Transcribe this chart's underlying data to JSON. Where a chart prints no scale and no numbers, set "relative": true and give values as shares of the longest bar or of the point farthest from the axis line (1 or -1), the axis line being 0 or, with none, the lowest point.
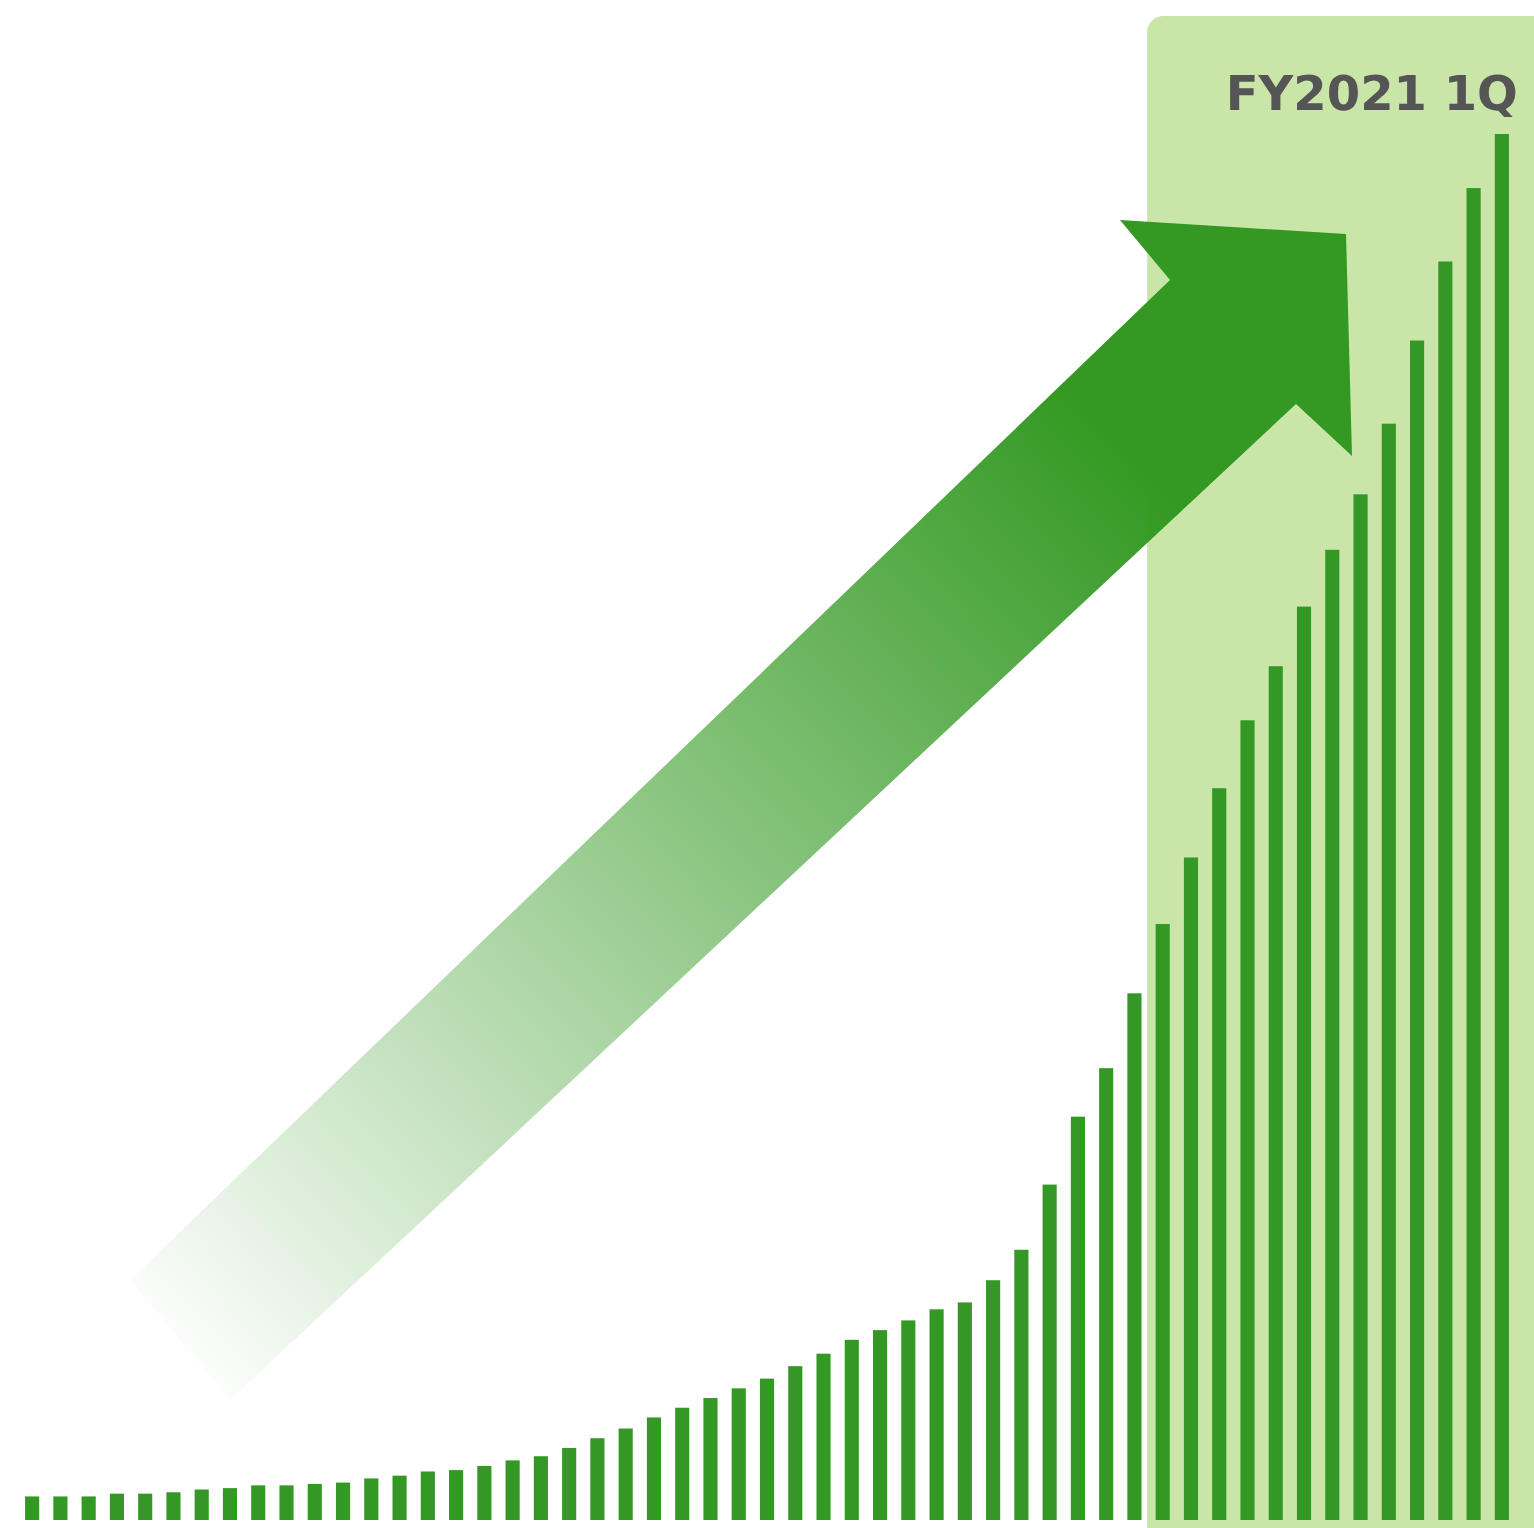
{
  "chart_data": {
    "type": "bar",
    "relative": true,
    "color": "#339924",
    "categories": [
      null,
      null,
      null,
      null,
      null,
      null,
      null,
      null,
      null,
      null,
      null,
      null,
      null,
      null,
      null,
      null,
      null,
      null,
      null,
      null,
      null,
      null,
      null,
      null,
      null,
      null,
      null,
      null,
      null,
      null,
      null,
      null,
      null,
      null,
      null,
      null,
      null,
      null,
      null,
      null,
      null,
      null,
      null,
      null,
      null,
      null,
      null,
      null,
      null,
      null,
      null,
      null,
      null
    ],
    "values": [
      0.017,
      0.017,
      0.017,
      0.019,
      0.019,
      0.02,
      0.022,
      0.023,
      0.025,
      0.025,
      0.026,
      0.027,
      0.03,
      0.032,
      0.035,
      0.036,
      0.039,
      0.043,
      0.046,
      0.052,
      0.059,
      0.066,
      0.074,
      0.081,
      0.088,
      0.095,
      0.102,
      0.111,
      0.12,
      0.13,
      0.137,
      0.144,
      0.152,
      0.157,
      0.173,
      0.195,
      0.242,
      0.291,
      0.326,
      0.38,
      0.43,
      0.478,
      0.528,
      0.577,
      0.616,
      0.659,
      0.7,
      0.74,
      0.791,
      0.851,
      0.908,
      0.961,
      1
    ],
    "annotations": [
      "FY2021 1Q"
    ]
  }
}
